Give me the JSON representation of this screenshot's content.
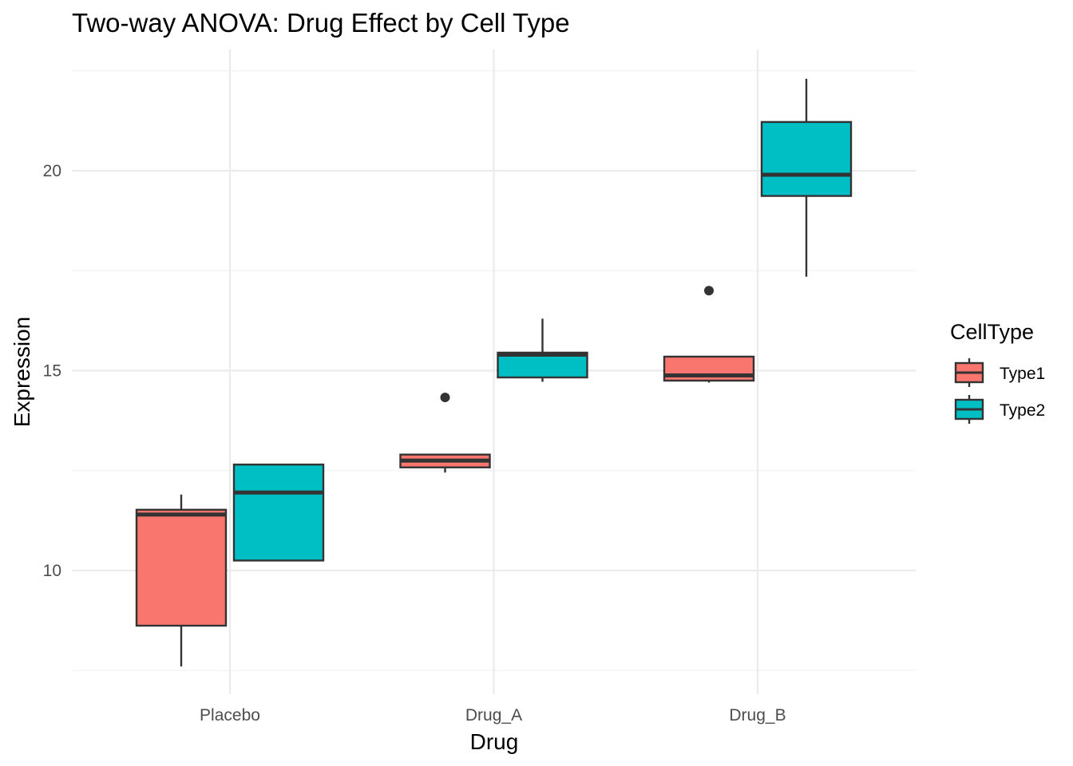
{
  "chart_data": {
    "type": "boxplot",
    "title": "Two-way ANOVA: Drug Effect by Cell Type",
    "xlabel": "Drug",
    "ylabel": "Expression",
    "categories": [
      "Placebo",
      "Drug_A",
      "Drug_B"
    ],
    "ylim": [
      7.5,
      22.6
    ],
    "yticks": [
      10,
      15,
      20
    ],
    "ytick_labels": [
      "10",
      "15",
      "20"
    ],
    "legend": {
      "title": "CellType",
      "position": "right",
      "entries": [
        "Type1",
        "Type2"
      ]
    },
    "series": [
      {
        "name": "Type1",
        "color": "#F8766D",
        "boxes": [
          {
            "category": "Placebo",
            "min": 7.6,
            "q1": 8.62,
            "median": 11.4,
            "q3": 11.52,
            "max": 11.9,
            "outliers": []
          },
          {
            "category": "Drug_A",
            "min": 12.45,
            "q1": 12.58,
            "median": 12.75,
            "q3": 12.9,
            "max": 12.9,
            "outliers": [
              14.33
            ]
          },
          {
            "category": "Drug_B",
            "min": 14.7,
            "q1": 14.75,
            "median": 14.88,
            "q3": 15.35,
            "max": 15.35,
            "outliers": [
              17.0
            ]
          }
        ]
      },
      {
        "name": "Type2",
        "color": "#00BFC4",
        "boxes": [
          {
            "category": "Placebo",
            "min": 10.25,
            "q1": 10.25,
            "median": 11.95,
            "q3": 12.65,
            "max": 12.65,
            "outliers": []
          },
          {
            "category": "Drug_A",
            "min": 14.72,
            "q1": 14.83,
            "median": 15.4,
            "q3": 15.45,
            "max": 16.3,
            "outliers": []
          },
          {
            "category": "Drug_B",
            "min": 17.35,
            "q1": 19.37,
            "median": 19.9,
            "q3": 21.22,
            "max": 22.3,
            "outliers": []
          }
        ]
      }
    ],
    "colors": {
      "grid_major": "#ebebeb",
      "grid_minor": "#f2f2f2",
      "box_outline": "#333333"
    }
  }
}
